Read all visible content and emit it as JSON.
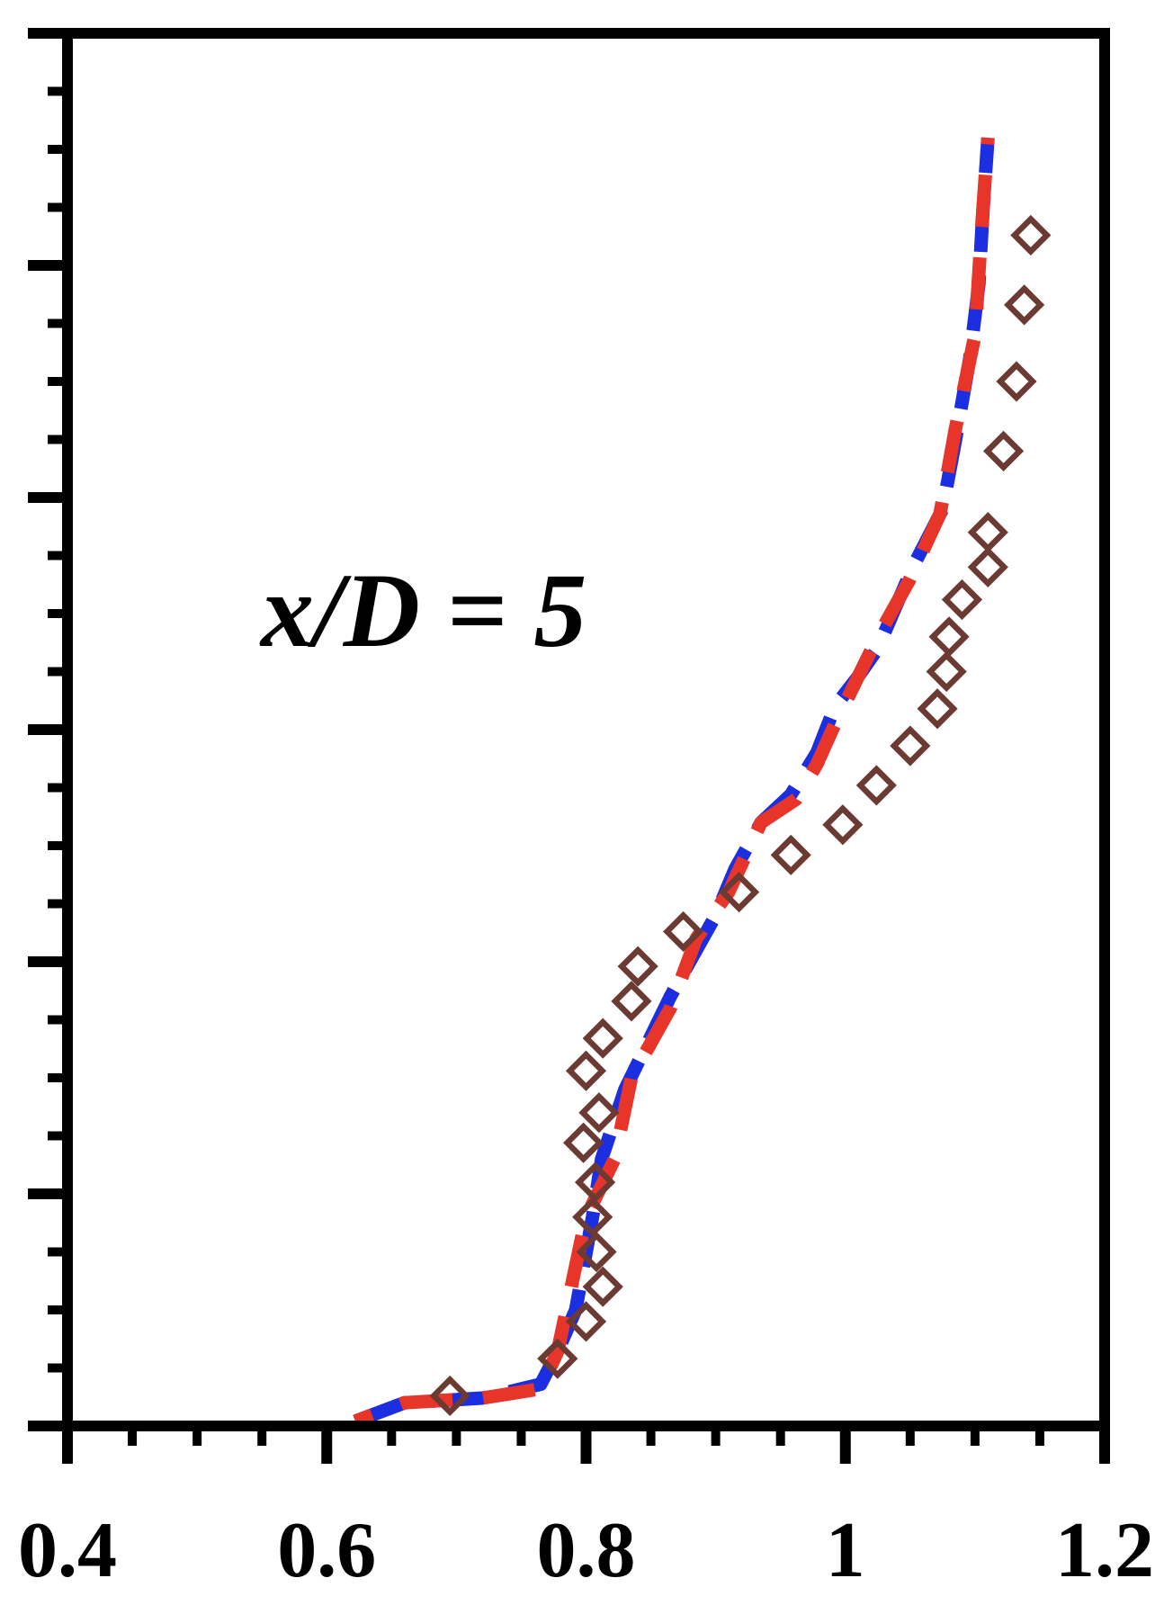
{
  "chart_data": {
    "type": "line",
    "title": "",
    "xlabel": "",
    "ylabel": "",
    "xlim": [
      0.4,
      1.2
    ],
    "ylim": [
      0,
      6
    ],
    "x_ticks": [
      0.4,
      0.6,
      0.8,
      1.0,
      1.2
    ],
    "x_tick_labels": [
      "0.4",
      "0.6",
      "0.8",
      "1",
      "1.2"
    ],
    "x_minor_step": 0.05,
    "y_ticks": [
      0,
      1,
      2,
      3,
      4,
      5,
      6
    ],
    "y_minor_step": 0.25,
    "y_tick_labels_shown": false,
    "grid": false,
    "annotation": "x/D = 5",
    "series": [
      {
        "style": "dashed",
        "color": "#1c2fe0",
        "x": [
          0.622,
          0.66,
          0.72,
          0.765,
          0.778,
          0.792,
          0.805,
          0.812,
          0.83,
          0.865,
          0.9,
          0.915,
          0.935,
          0.958,
          0.978,
          0.992,
          1.01,
          1.025,
          1.052,
          1.075,
          1.085,
          1.096,
          1.103,
          1.106,
          1.11
        ],
        "y": [
          0.02,
          0.1,
          0.12,
          0.18,
          0.32,
          0.5,
          0.9,
          1.15,
          1.45,
          1.85,
          2.2,
          2.4,
          2.6,
          2.72,
          2.9,
          3.1,
          3.23,
          3.35,
          3.7,
          3.95,
          4.25,
          4.6,
          4.92,
          5.22,
          5.55
        ]
      },
      {
        "style": "dashed",
        "color": "#e8352a",
        "x": [
          0.622,
          0.66,
          0.72,
          0.765,
          0.778,
          0.8,
          0.822,
          0.835,
          0.865,
          0.885,
          0.91,
          0.935,
          0.962,
          0.978,
          0.99,
          1.01,
          1.025,
          1.05,
          1.073,
          1.085,
          1.1,
          1.105,
          1.11
        ],
        "y": [
          0.02,
          0.1,
          0.12,
          0.16,
          0.32,
          0.9,
          1.15,
          1.5,
          1.8,
          2.1,
          2.3,
          2.6,
          2.7,
          2.85,
          3.0,
          3.23,
          3.4,
          3.65,
          3.93,
          4.3,
          4.7,
          5.15,
          5.55
        ]
      },
      {
        "style": "markers",
        "marker": "diamond-open",
        "color": "#6b3a32",
        "x": [
          0.695,
          0.778,
          0.8,
          0.813,
          0.808,
          0.805,
          0.807,
          0.798,
          0.81,
          0.8,
          0.813,
          0.835,
          0.84,
          0.875,
          0.918,
          0.958,
          0.998,
          1.024,
          1.05,
          1.071,
          1.078,
          1.08,
          1.09,
          1.11,
          1.11,
          1.122,
          1.132,
          1.138,
          1.143
        ],
        "y": [
          0.13,
          0.29,
          0.45,
          0.6,
          0.75,
          0.9,
          1.05,
          1.22,
          1.35,
          1.53,
          1.67,
          1.83,
          1.98,
          2.13,
          2.3,
          2.46,
          2.59,
          2.76,
          2.93,
          3.09,
          3.25,
          3.4,
          3.56,
          3.7,
          3.85,
          4.2,
          4.5,
          4.83,
          5.13
        ]
      }
    ]
  }
}
